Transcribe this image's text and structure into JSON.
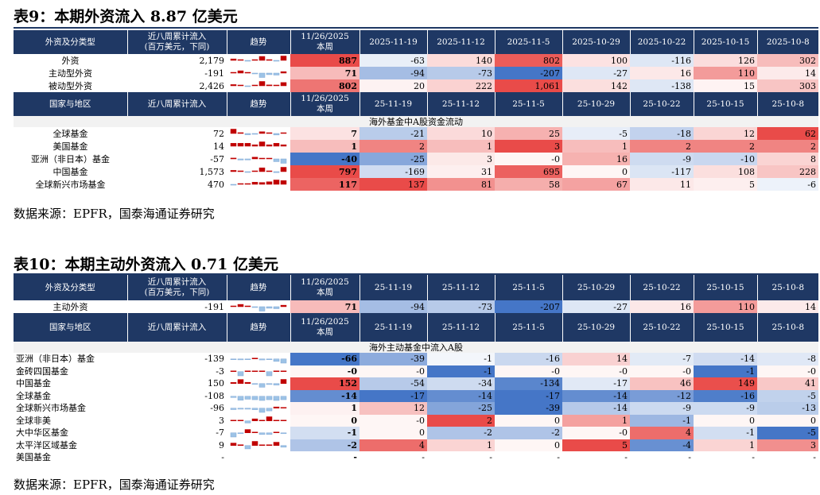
{
  "table9": {
    "title": "表9：本期外资流入 8.87 亿美元",
    "header1": [
      "外资及分类型",
      "近八周累计流入\n(百万美元，下同)",
      "趋势",
      "11/26/2025\n本周",
      "2025-11-19",
      "2025-11-12",
      "2025-11-5",
      "2025-10-29",
      "2025-10-22",
      "2025-10-15",
      "2025-10-8"
    ],
    "rows1": [
      {
        "name": "外资",
        "cum": "2,179",
        "vals": [
          "887",
          "-63",
          "140",
          "802",
          "100",
          "-116",
          "126",
          "302"
        ]
      },
      {
        "name": "主动型外资",
        "cum": "-191",
        "vals": [
          "71",
          "-94",
          "-73",
          "-207",
          "-27",
          "16",
          "110",
          "14"
        ]
      },
      {
        "name": "被动型外资",
        "cum": "2,426",
        "vals": [
          "802",
          "20",
          "222",
          "1,061",
          "142",
          "-138",
          "15",
          "303"
        ]
      }
    ],
    "header2": [
      "国家与地区",
      "近八周累计流入",
      "趋势",
      "11/26/2025\n本周",
      "25-11-19",
      "25-11-12",
      "25-11-5",
      "25-10-29",
      "25-10-22",
      "25-10-15",
      "25-10-8"
    ],
    "band": "海外基金中A股资金流动",
    "rows2": [
      {
        "name": "全球基金",
        "cum": "72",
        "vals": [
          "7",
          "-21",
          "10",
          "25",
          "-5",
          "-18",
          "12",
          "62"
        ]
      },
      {
        "name": "美国基金",
        "cum": "14",
        "vals": [
          "1",
          "2",
          "1",
          "3",
          "1",
          "2",
          "2",
          "2"
        ]
      },
      {
        "name": "亚洲（非日本）基金",
        "cum": "-57",
        "vals": [
          "-40",
          "-25",
          "3",
          "-0",
          "16",
          "-9",
          "-10",
          "8"
        ]
      },
      {
        "name": "中国基金",
        "cum": "1,573",
        "vals": [
          "797",
          "-169",
          "31",
          "695",
          "0",
          "-117",
          "108",
          "228"
        ]
      },
      {
        "name": "全球新兴市场基金",
        "cum": "470",
        "vals": [
          "117",
          "137",
          "81",
          "58",
          "67",
          "11",
          "5",
          "-6"
        ]
      }
    ]
  },
  "table10": {
    "title": "表10：本期主动外资流入 0.71 亿美元",
    "header1": [
      "外资及分类型",
      "近八周累计流入\n(百万美元，下同)",
      "趋势",
      "11/26/2025\n本周",
      "25-11-19",
      "25-11-12",
      "25-11-5",
      "25-10-29",
      "25-10-22",
      "25-10-15",
      "25-10-8"
    ],
    "rows1": [
      {
        "name": "主动外资",
        "cum": "-191",
        "vals": [
          "71",
          "-94",
          "-73",
          "-207",
          "-27",
          "16",
          "110",
          "14"
        ]
      }
    ],
    "header2": [
      "国家与地区",
      "近八周累计流入",
      "趋势",
      "11/26/2025\n本周",
      "25-11-19",
      "25-11-12",
      "25-11-5",
      "25-10-29",
      "25-10-22",
      "25-10-15",
      "25-10-8"
    ],
    "band": "海外主动基金中流入A股",
    "rows2": [
      {
        "name": "亚洲（非日本）基金",
        "cum": "-139",
        "vals": [
          "-66",
          "-39",
          "-1",
          "-16",
          "14",
          "-7",
          "-14",
          "-8"
        ]
      },
      {
        "name": "金砖四国基金",
        "cum": "-3",
        "vals": [
          "-0",
          "-0",
          "-1",
          "-0",
          "-0",
          "-0",
          "-1",
          "-0"
        ]
      },
      {
        "name": "中国基金",
        "cum": "150",
        "vals": [
          "152",
          "-54",
          "-34",
          "-134",
          "-17",
          "46",
          "149",
          "41"
        ]
      },
      {
        "name": "全球基金",
        "cum": "-108",
        "vals": [
          "-14",
          "-17",
          "-14",
          "-17",
          "-14",
          "-12",
          "-16",
          "-5"
        ]
      },
      {
        "name": "全球新兴市场基金",
        "cum": "-96",
        "vals": [
          "1",
          "12",
          "-25",
          "-39",
          "-14",
          "-9",
          "-9",
          "-13"
        ]
      },
      {
        "name": "全球非美",
        "cum": "3",
        "vals": [
          "0",
          "-0",
          "2",
          "0",
          "1",
          "-1",
          "0",
          "0"
        ]
      },
      {
        "name": "大中华区基金",
        "cum": "-7",
        "vals": [
          "-1",
          "0",
          "-2",
          "-2",
          "-0",
          "4",
          "-1",
          "-5"
        ]
      },
      {
        "name": "太平洋区域基金",
        "cum": "9",
        "vals": [
          "-2",
          "4",
          "1",
          "0",
          "5",
          "-4",
          "1",
          "3"
        ]
      },
      {
        "name": "美国基金",
        "cum": "-",
        "vals": [
          "-",
          "-",
          "-",
          "-",
          "-",
          "-",
          "-",
          "-"
        ]
      }
    ]
  },
  "source": "数据来源：EPFR，国泰海通证券研究",
  "colors": {
    "header": "#1f3864",
    "positive": "#e8423f",
    "negative": "#3b6fc4",
    "spark_pos": "#c00000",
    "spark_neg": "#9dc3e6"
  }
}
